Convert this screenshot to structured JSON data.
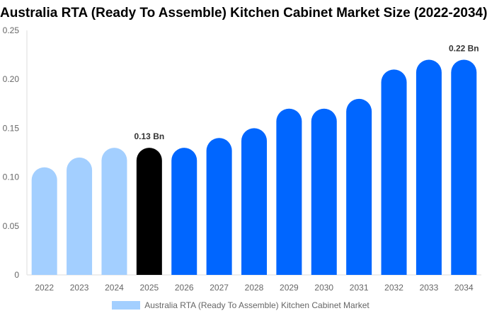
{
  "chart_data": {
    "type": "bar",
    "title": "Australia RTA (Ready To Assemble) Kitchen Cabinet Market Size (2022-2034)",
    "categories": [
      "2022",
      "2023",
      "2024",
      "2025",
      "2026",
      "2027",
      "2028",
      "2029",
      "2030",
      "2031",
      "2032",
      "2033",
      "2034"
    ],
    "series": [
      {
        "name": "Australia RTA (Ready To Assemble) Kitchen Cabinet Market",
        "values": [
          0.11,
          0.12,
          0.13,
          0.13,
          0.13,
          0.14,
          0.15,
          0.17,
          0.17,
          0.18,
          0.21,
          0.22,
          0.22
        ]
      }
    ],
    "bar_colors": [
      "#a3cfff",
      "#a3cfff",
      "#a3cfff",
      "#000000",
      "#0066ff",
      "#0066ff",
      "#0066ff",
      "#0066ff",
      "#0066ff",
      "#0066ff",
      "#0066ff",
      "#0066ff",
      "#0066ff"
    ],
    "data_labels": {
      "3": "0.13 Bn",
      "12": "0.22 Bn"
    },
    "yticks": [
      "0",
      "0.05",
      "0.10",
      "0.15",
      "0.20",
      "0.25"
    ],
    "ylim": [
      0,
      0.25
    ],
    "xlabel": "",
    "ylabel": "",
    "grid": false,
    "legend_position": "bottom",
    "legend_color": "#a3cfff"
  }
}
